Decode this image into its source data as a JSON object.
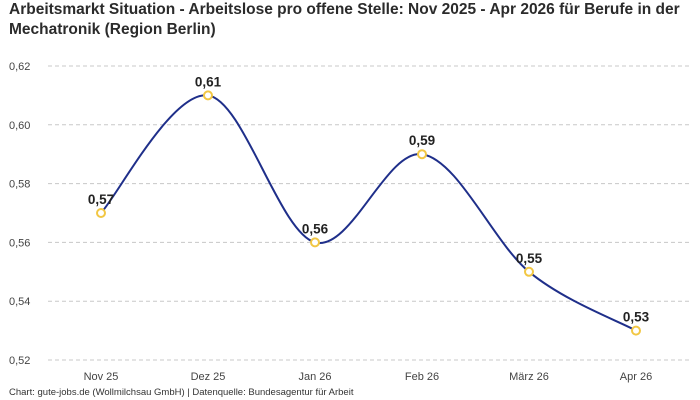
{
  "chart_data": {
    "type": "line",
    "title": "Arbeitsmarkt Situation - Arbeitslose pro offene Stelle: Nov 2025 - Apr 2026 für Berufe in der Mechatronik (Region Berlin)",
    "categories": [
      "Nov 25",
      "Dez 25",
      "Jan 26",
      "Feb 26",
      "März 26",
      "Apr 26"
    ],
    "series": [
      {
        "values": [
          0.57,
          0.61,
          0.56,
          0.59,
          0.55,
          0.53
        ]
      }
    ],
    "data_labels": [
      "0,57",
      "0,61",
      "0,56",
      "0,59",
      "0,55",
      "0,53"
    ],
    "yticks": [
      0.52,
      0.54,
      0.56,
      0.58,
      0.6,
      0.62
    ],
    "ytick_labels": [
      "0,52",
      "0,54",
      "0,56",
      "0,58",
      "0,60",
      "0,62"
    ],
    "ylim": [
      0.52,
      0.62
    ],
    "grid": "horizontal dashed",
    "line_color": "#1f2f8a",
    "marker_color": "#f2c744",
    "footer": "Chart: gute-jobs.de (Wollmilchsau GmbH) | Datenquelle: Bundesagentur für Arbeit"
  }
}
